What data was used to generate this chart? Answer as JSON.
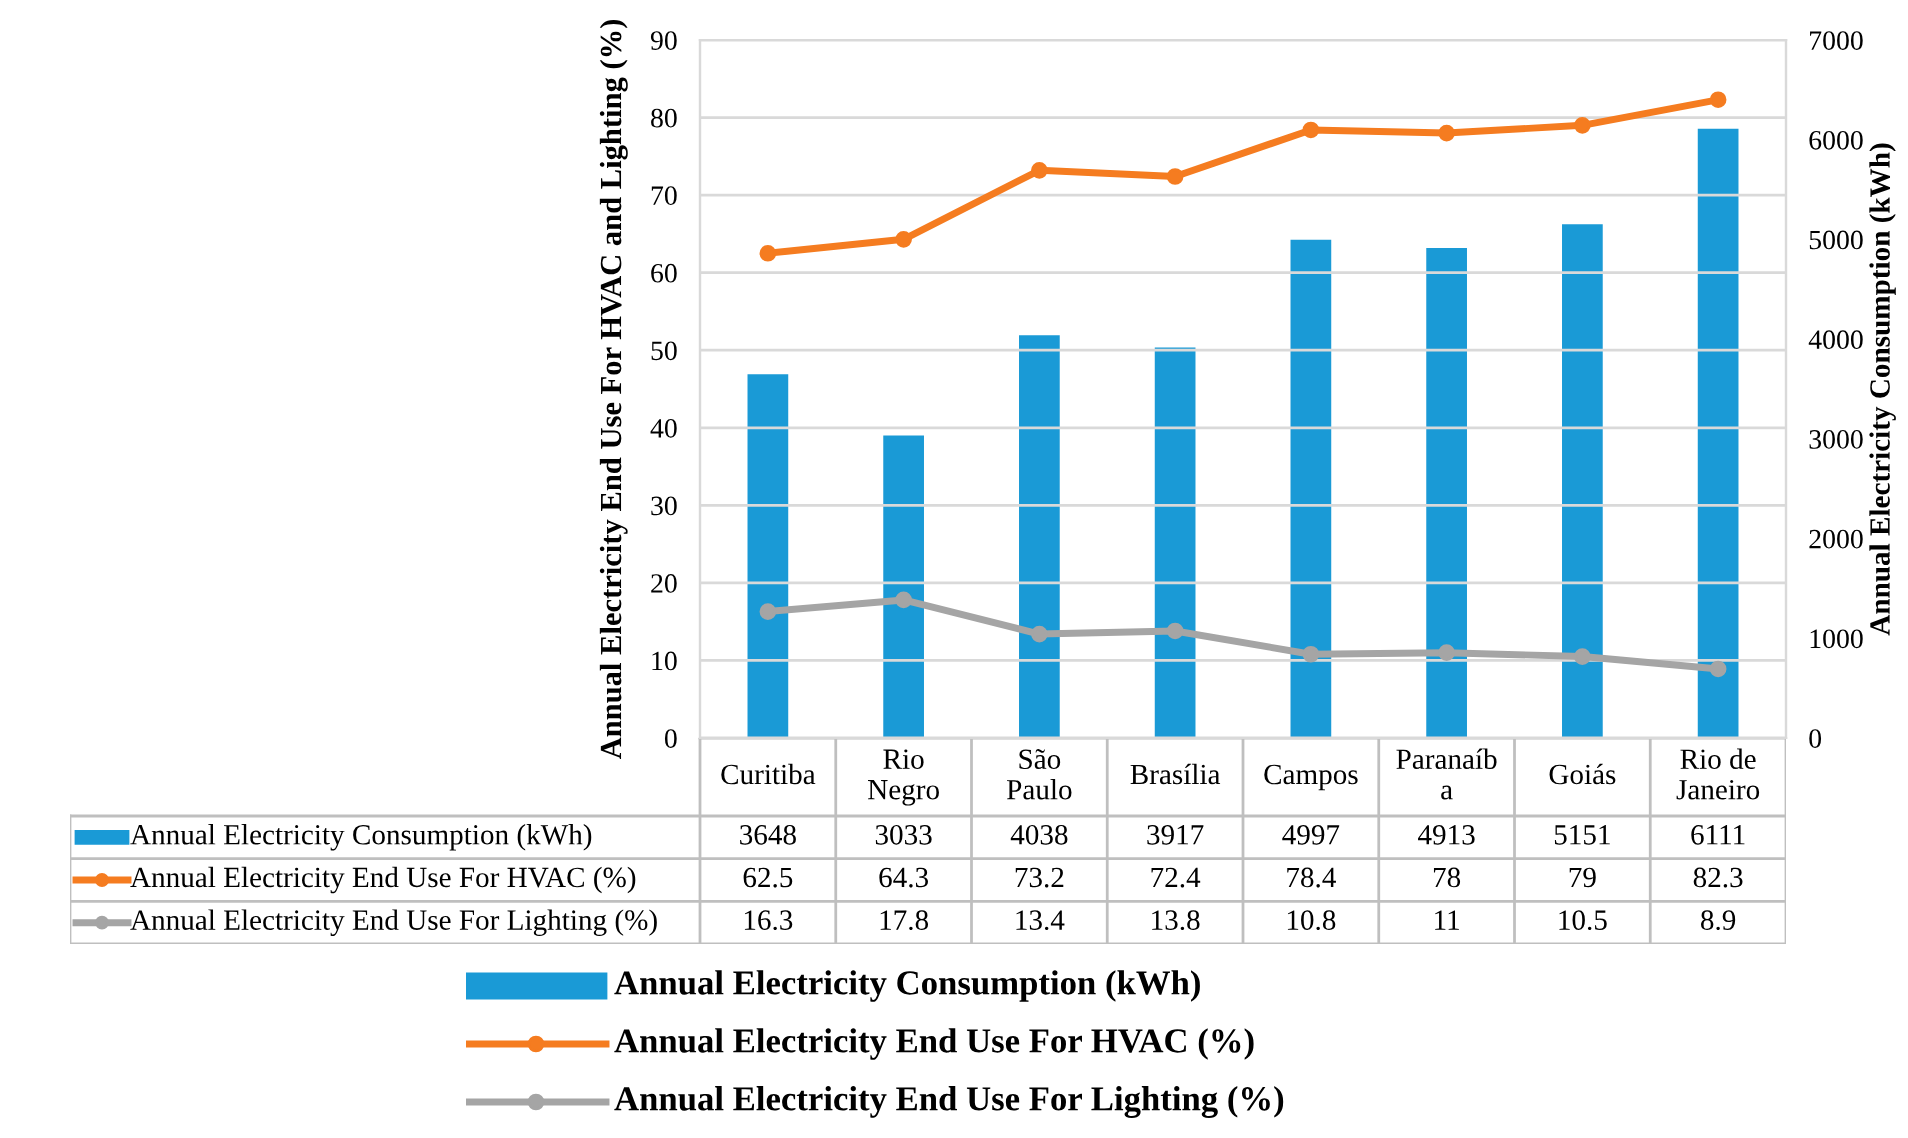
{
  "chart_data": {
    "type": "bar",
    "categories": [
      "Curitiba",
      "Rio\nNegro",
      "São\nPaulo",
      "Brasília",
      "Campos",
      "Paranaíb\na",
      "Goiás",
      "Rio de\nJaneiro"
    ],
    "series": [
      {
        "name": "Annual Electricity Consumption (kWh)",
        "axis": "y2",
        "color": "#1a9ad6",
        "values": [
          3648,
          3033,
          4038,
          3917,
          4997,
          4913,
          5151,
          6111
        ]
      },
      {
        "name": "Annual Electricity End Use For HVAC (%)",
        "type": "line",
        "color": "#f57c20",
        "marker": "circle",
        "values": [
          62.5,
          64.3,
          73.2,
          72.4,
          78.4,
          78,
          79,
          82.3
        ]
      },
      {
        "name": "Annual Electricity End Use For Lighting (%)",
        "type": "line",
        "color": "#a5a5a5",
        "marker": "circle",
        "values": [
          16.3,
          17.8,
          13.4,
          13.8,
          10.8,
          11,
          10.5,
          8.9
        ]
      }
    ],
    "ylabel": "Annual Electricity End Use For HVAC and Lighting (%)",
    "y2label": "Annual Electricity Consumption (kWh)",
    "ylim": [
      0,
      90
    ],
    "yticks": [
      0,
      10,
      20,
      30,
      40,
      50,
      60,
      70,
      80,
      90
    ],
    "y2lim": [
      0,
      7000
    ],
    "y2ticks": [
      0,
      1000,
      2000,
      3000,
      4000,
      5000,
      6000,
      7000
    ],
    "grid": "y",
    "legend": "bottom",
    "data_labels": true,
    "line_style": "solid"
  }
}
